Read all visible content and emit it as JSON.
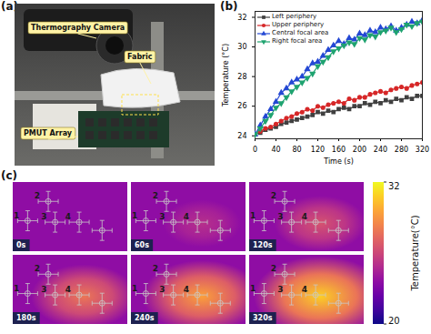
{
  "panels": {
    "a": "(a)",
    "b": "(b)",
    "c": "(c)"
  },
  "photo": {
    "labels": [
      "Thermography Camera",
      "Fabric",
      "PMUT Array"
    ]
  },
  "chart_data": {
    "type": "line",
    "x_label": "Time (s)",
    "y_label": "Temperature (°C)",
    "x": [
      0,
      10,
      20,
      30,
      40,
      50,
      60,
      70,
      80,
      90,
      100,
      110,
      120,
      130,
      140,
      150,
      160,
      170,
      180,
      190,
      200,
      210,
      220,
      230,
      240,
      250,
      260,
      270,
      280,
      290,
      300,
      310,
      320
    ],
    "xlim": [
      0,
      320
    ],
    "xticks": [
      0,
      40,
      80,
      120,
      160,
      200,
      240,
      280,
      320
    ],
    "ylim": [
      23.8,
      32.4
    ],
    "yticks": [
      24,
      26,
      28,
      30,
      32
    ],
    "legend": "upper left",
    "grid": false,
    "series": [
      {
        "name": "Left periphery",
        "color": "#404040",
        "marker": "square",
        "values": [
          24.1,
          24.2,
          24.4,
          24.5,
          24.6,
          24.8,
          24.9,
          25.0,
          25.1,
          25.2,
          25.3,
          25.4,
          25.6,
          25.5,
          25.7,
          25.6,
          25.8,
          25.9,
          25.8,
          26.0,
          26.0,
          26.2,
          26.1,
          26.3,
          26.2,
          26.4,
          26.3,
          26.5,
          26.4,
          26.6,
          26.5,
          26.7,
          26.7
        ]
      },
      {
        "name": "Upper periphery",
        "color": "#d62728",
        "marker": "circle",
        "values": [
          24.1,
          24.3,
          24.5,
          24.6,
          24.8,
          25.0,
          25.2,
          25.3,
          25.5,
          25.6,
          25.8,
          25.7,
          26.0,
          25.9,
          26.1,
          26.2,
          26.3,
          26.2,
          26.5,
          26.4,
          26.6,
          26.6,
          26.8,
          26.9,
          27.0,
          26.9,
          27.1,
          27.2,
          27.3,
          27.2,
          27.4,
          27.5,
          27.6
        ]
      },
      {
        "name": "Central focal area",
        "color": "#2448d4",
        "marker": "triangle",
        "values": [
          24.1,
          24.7,
          25.3,
          25.8,
          26.3,
          26.9,
          27.2,
          27.6,
          27.8,
          28.0,
          28.5,
          28.9,
          29.0,
          29.4,
          29.8,
          30.1,
          30.4,
          30.2,
          30.6,
          30.5,
          30.9,
          30.8,
          31.1,
          31.0,
          31.3,
          31.2,
          31.4,
          31.1,
          31.3,
          31.5,
          31.7,
          31.6,
          31.8
        ]
      },
      {
        "name": "Right focal area",
        "color": "#1fa370",
        "marker": "triangle-down",
        "values": [
          24.1,
          24.5,
          25.0,
          25.4,
          25.9,
          26.2,
          26.6,
          27.0,
          27.3,
          27.6,
          27.9,
          28.2,
          28.7,
          29.0,
          29.3,
          29.7,
          29.9,
          30.1,
          30.3,
          30.2,
          30.6,
          30.5,
          30.8,
          30.7,
          31.0,
          31.1,
          31.3,
          31.0,
          31.2,
          31.5,
          31.4,
          31.6,
          31.7
        ]
      }
    ]
  },
  "thermal": {
    "frames": [
      "0s",
      "60s",
      "120s",
      "180s",
      "240s",
      "320s"
    ],
    "markers": [
      "1",
      "2",
      "3",
      "4"
    ],
    "colorbar": {
      "range": [
        20,
        32
      ],
      "ticks": [
        20,
        32
      ],
      "label": "Temperature(°C)"
    }
  }
}
